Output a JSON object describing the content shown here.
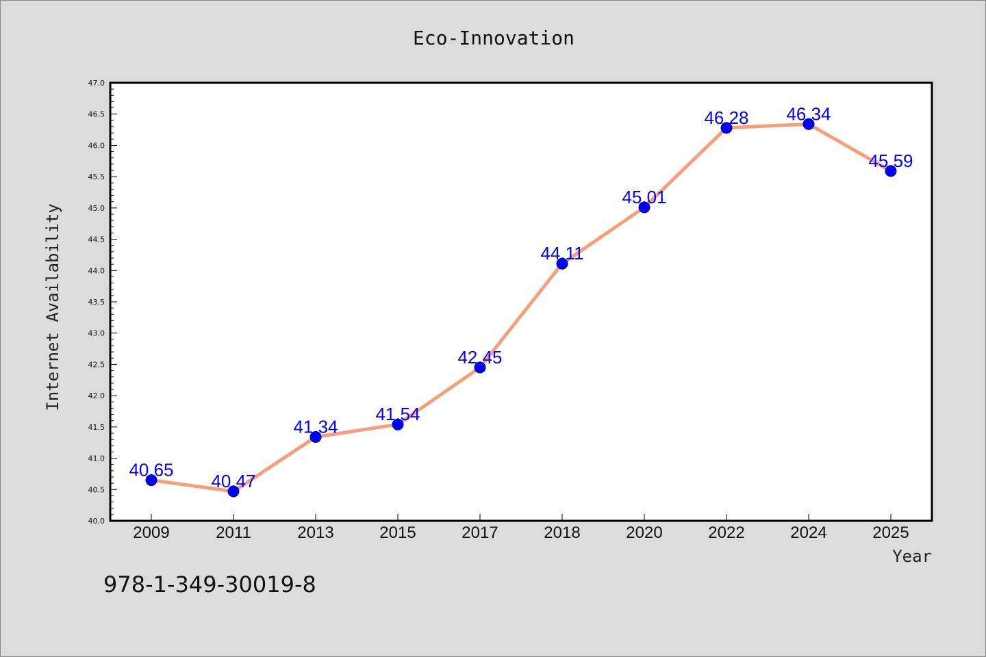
{
  "chart_data": {
    "type": "line",
    "title": "Eco-Innovation",
    "xlabel": "Year",
    "ylabel": "Internet Availability",
    "categories": [
      "2009",
      "2011",
      "2013",
      "2015",
      "2017",
      "2018",
      "2020",
      "2022",
      "2024",
      "2025"
    ],
    "series": [
      {
        "values": [
          40.65,
          40.47,
          41.34,
          41.54,
          42.45,
          44.11,
          45.01,
          46.28,
          46.34,
          45.59
        ]
      }
    ],
    "data_labels": [
      "40.65",
      "40.47",
      "41.34",
      "41.54",
      "42.45",
      "44.11",
      "45.01",
      "46.28",
      "46.34",
      "45.59"
    ],
    "ylim": [
      40.0,
      47.0
    ],
    "y_ticks": [
      "40.0",
      "40.5",
      "41.0",
      "41.5",
      "42.0",
      "42.5",
      "43.0",
      "43.5",
      "44.0",
      "44.5",
      "45.0",
      "45.5",
      "46.0",
      "46.5",
      "47.0"
    ],
    "grid": false,
    "legend": "none",
    "colors": {
      "line": "#f5a07a",
      "marker": "#0000ff",
      "marker_edge": "#000080",
      "label": "#0000ff",
      "background": "#dcdcdc",
      "plot_area": "#ffffff"
    },
    "annotation": "978-1-349-30019-8"
  }
}
